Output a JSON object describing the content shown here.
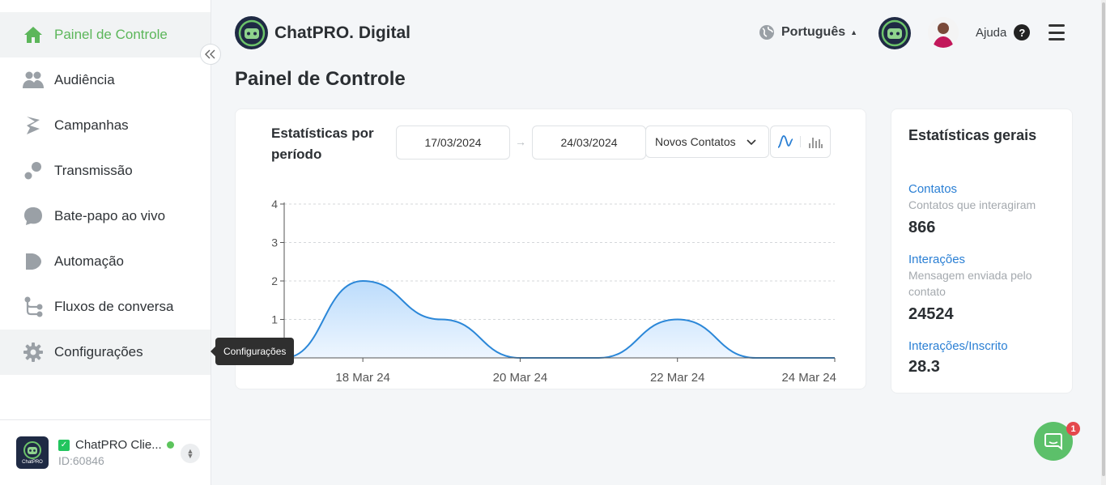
{
  "sidebar": {
    "items": [
      {
        "label": "Painel de Controle",
        "icon": "home-icon"
      },
      {
        "label": "Audiência",
        "icon": "people-icon"
      },
      {
        "label": "Campanhas",
        "icon": "campaign-icon"
      },
      {
        "label": "Transmissão",
        "icon": "broadcast-icon"
      },
      {
        "label": "Bate-papo ao vivo",
        "icon": "chat-bubble-icon"
      },
      {
        "label": "Automação",
        "icon": "automation-icon"
      },
      {
        "label": "Fluxos de conversa",
        "icon": "flow-icon"
      },
      {
        "label": "Configurações",
        "icon": "gear-icon"
      }
    ],
    "tooltip": "Configurações",
    "account": {
      "name": "ChatPRO Clie...",
      "id": "ID:60846",
      "logo_text": "ChatPRO"
    }
  },
  "header": {
    "brand": "ChatPRO. Digital",
    "language": "Português",
    "help": "Ajuda"
  },
  "page_title": "Painel de Controle",
  "chart_card": {
    "title": "Estatísticas por período",
    "date_from": "17/03/2024",
    "date_to": "24/03/2024",
    "metric": "Novos Contatos"
  },
  "chart_data": {
    "type": "area",
    "x_ticks": [
      "18 Mar 24",
      "20 Mar 24",
      "22 Mar 24",
      "24 Mar 24"
    ],
    "x": [
      "17 Mar 24",
      "18 Mar 24",
      "19 Mar 24",
      "20 Mar 24",
      "21 Mar 24",
      "22 Mar 24",
      "23 Mar 24",
      "24 Mar 24"
    ],
    "values": [
      0,
      2,
      1,
      0,
      0,
      1,
      0,
      0
    ],
    "yticks": [
      "1",
      "2",
      "3",
      "4"
    ],
    "ylim": [
      0,
      4
    ],
    "grid": true,
    "colors": {
      "line": "#2b87d8",
      "fill_top": "#bcdcfb",
      "fill_bottom": "#eef6ff"
    }
  },
  "stats_card": {
    "title": "Estatísticas gerais",
    "items": [
      {
        "label": "Contatos",
        "desc": "Contatos que interagiram",
        "value": "866"
      },
      {
        "label": "Interações",
        "desc": "Mensagem enviada pelo contato",
        "value": "24524"
      },
      {
        "label": "Interações/Inscrito",
        "desc": "",
        "value": "28.3"
      }
    ]
  },
  "chat_widget": {
    "badge": "1"
  },
  "colors": {
    "accent": "#5cb65a",
    "link": "#2a7fd4"
  }
}
